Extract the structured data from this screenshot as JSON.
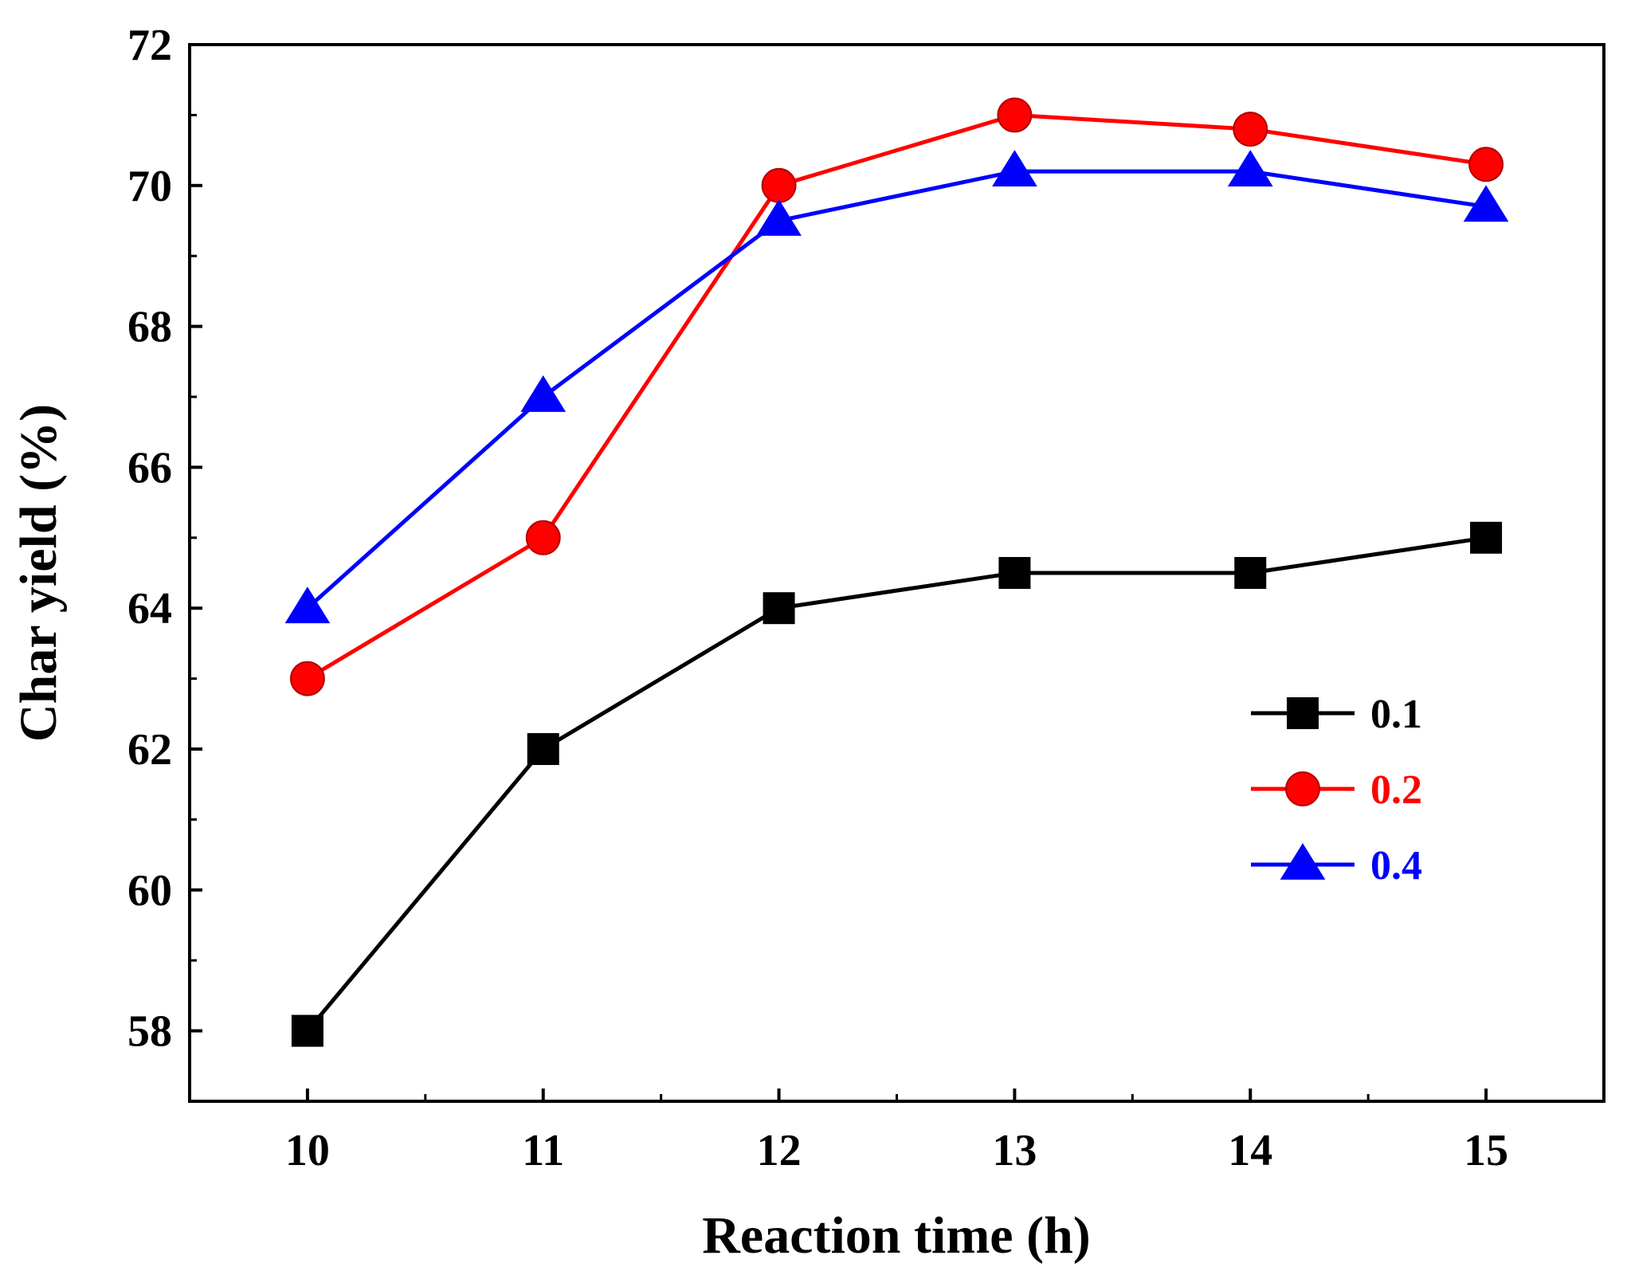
{
  "chart_data": {
    "type": "line",
    "title": "",
    "xlabel": "Reaction time (h)",
    "ylabel": "Char yield (%)",
    "x": [
      10,
      11,
      12,
      13,
      14,
      15
    ],
    "xticks": [
      "10",
      "11",
      "12",
      "13",
      "14",
      "15"
    ],
    "xlim": [
      9.5,
      15.5
    ],
    "yticks": [
      "58",
      "60",
      "62",
      "64",
      "66",
      "68",
      "70",
      "72"
    ],
    "ylim": [
      57,
      72
    ],
    "grid": false,
    "legend": "right",
    "series": [
      {
        "name": "0.1",
        "color": "#000000",
        "marker": "square",
        "values": [
          58.0,
          62.0,
          64.0,
          64.5,
          64.5,
          65.0
        ]
      },
      {
        "name": "0.2",
        "color": "#ff0000",
        "marker": "circle",
        "values": [
          63.0,
          65.0,
          70.0,
          71.0,
          70.8,
          70.3
        ]
      },
      {
        "name": "0.4",
        "color": "#0000ff",
        "marker": "triangle",
        "values": [
          64.0,
          67.0,
          69.5,
          70.2,
          70.2,
          69.7
        ]
      }
    ]
  }
}
